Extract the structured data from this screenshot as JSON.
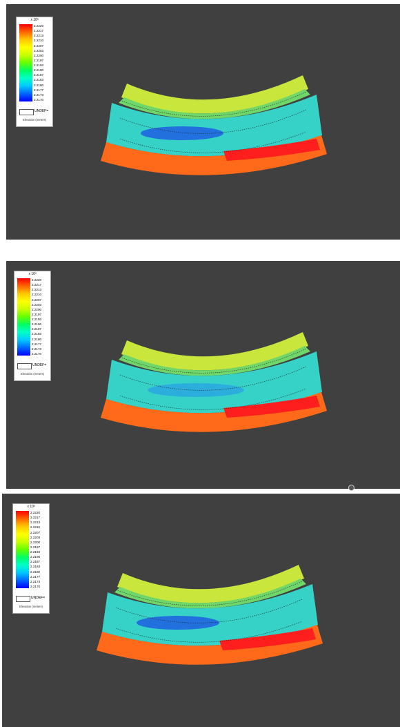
{
  "legend": {
    "multiplier": "x 10³",
    "values": [
      "2.2220",
      "2.2217",
      "2.2213",
      "2.2210",
      "2.2207",
      "2.2203",
      "2.2200",
      "2.2197",
      "2.2193",
      "2.2190",
      "2.2187",
      "2.2183",
      "2.2180",
      "2.2177",
      "2.2173",
      "2.2170"
    ],
    "undef_label": "UNDEF=",
    "variable_label": "Elevation (meters)"
  },
  "colors": {
    "background": "#404040",
    "ramp": [
      "#0000ff",
      "#0064ff",
      "#00c8ff",
      "#00ffc8",
      "#00ff64",
      "#64ff00",
      "#c8ff00",
      "#ffff00",
      "#ffc800",
      "#ff6400",
      "#ff0000"
    ],
    "contour": "#222222"
  },
  "icons": {
    "cursor": "cursor-dot-icon"
  }
}
